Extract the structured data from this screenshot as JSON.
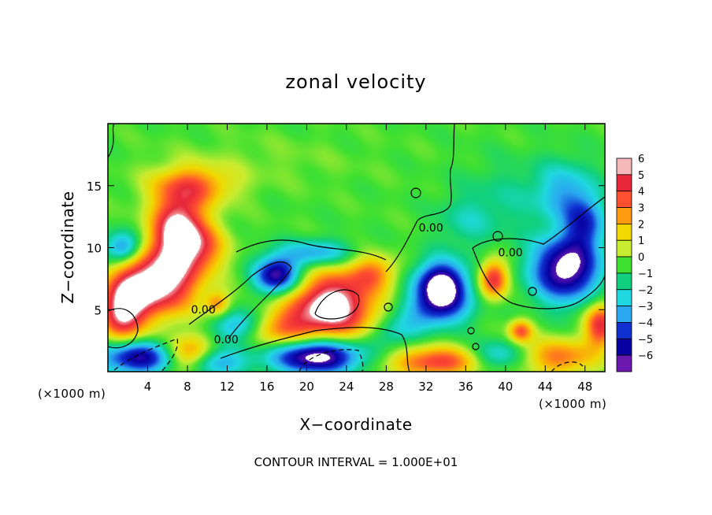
{
  "chart_data": {
    "type": "heatmap",
    "title": "zonal velocity",
    "xlabel": "X−coordinate",
    "ylabel": "Z−coordinate",
    "x_unit_left": "(×1000 m)",
    "x_unit_right": "(×1000 m)",
    "footer": "CONTOUR INTERVAL = 1.000E+01",
    "xlim": [
      0,
      50
    ],
    "ylim": [
      0,
      20
    ],
    "x_ticks": [
      4,
      8,
      12,
      16,
      20,
      24,
      28,
      32,
      36,
      40,
      44,
      48
    ],
    "y_ticks": [
      5,
      10,
      15
    ],
    "colorbar": {
      "min": -6,
      "max": 6,
      "ticks": [
        6,
        5,
        4,
        3,
        2,
        1,
        0,
        -1,
        -2,
        -3,
        -4,
        -5,
        -6
      ],
      "colors": [
        "#f4b8b8",
        "#e8283a",
        "#ff5030",
        "#ff9a10",
        "#f0d800",
        "#c8ec30",
        "#40e030",
        "#10d080",
        "#20d8e0",
        "#2aa8f0",
        "#1030d0",
        "#0800a0",
        "#6a18b0"
      ]
    },
    "contour_labels": [
      {
        "text": "0.00",
        "x": 32.5,
        "y": 11.3
      },
      {
        "text": "0.00",
        "x": 9.6,
        "y": 4.7
      },
      {
        "text": "0.00",
        "x": 11.9,
        "y": 2.3
      },
      {
        "text": "0.00",
        "x": 40.5,
        "y": 9.3
      }
    ],
    "features": [
      {
        "x": 7,
        "y": 11.5,
        "r": [
          2.6,
          2.8
        ],
        "v": 6.5
      },
      {
        "x": 5,
        "y": 7.2,
        "r": [
          3.8,
          2.6
        ],
        "v": 6.8
      },
      {
        "x": 1.5,
        "y": 5,
        "r": [
          2.2,
          2.6
        ],
        "v": 6
      },
      {
        "x": 8.5,
        "y": 15,
        "r": [
          4,
          1.6
        ],
        "v": 3.5
      },
      {
        "x": 9.5,
        "y": 10,
        "r": [
          2.5,
          2
        ],
        "v": 3
      },
      {
        "x": 22.5,
        "y": 5.3,
        "r": [
          4.2,
          2.6
        ],
        "v": 7
      },
      {
        "x": 26.5,
        "y": 8,
        "r": [
          2.5,
          1.4
        ],
        "v": 3
      },
      {
        "x": 17,
        "y": 3.5,
        "r": [
          3.5,
          1.6
        ],
        "v": 3.5
      },
      {
        "x": 11,
        "y": 5.5,
        "r": [
          1.2,
          1
        ],
        "v": 3
      },
      {
        "x": 17,
        "y": 7.8,
        "r": [
          2.2,
          1.5
        ],
        "v": -6
      },
      {
        "x": 21,
        "y": 9.6,
        "r": [
          3.5,
          1.1
        ],
        "v": -3
      },
      {
        "x": 13.5,
        "y": 3.8,
        "r": [
          2.8,
          1.3
        ],
        "v": -3.5
      },
      {
        "x": 1.5,
        "y": 10,
        "r": [
          1.8,
          1.3
        ],
        "v": -4
      },
      {
        "x": 33.5,
        "y": 7,
        "r": [
          2.6,
          1.9
        ],
        "v": -7
      },
      {
        "x": 33,
        "y": 5,
        "r": [
          3.5,
          1.5
        ],
        "v": -3
      },
      {
        "x": 46,
        "y": 8.3,
        "r": [
          3.4,
          2.6
        ],
        "v": -6.5
      },
      {
        "x": 46,
        "y": 14.5,
        "r": [
          3,
          2.5
        ],
        "v": -2.5
      },
      {
        "x": 48,
        "y": 12,
        "r": [
          2,
          2.2
        ],
        "v": -3.5
      },
      {
        "x": 38.8,
        "y": 7.5,
        "r": [
          1.4,
          1.5
        ],
        "v": 5
      },
      {
        "x": 41.5,
        "y": 3.3,
        "r": [
          1.2,
          0.9
        ],
        "v": 4
      },
      {
        "x": 49.5,
        "y": 3.8,
        "r": [
          1.5,
          1.8
        ],
        "v": 5
      },
      {
        "x": 45.5,
        "y": 1.2,
        "r": [
          3.5,
          1.5
        ],
        "v": 3.5
      },
      {
        "x": 3,
        "y": 1.2,
        "r": [
          4.5,
          1.4
        ],
        "v": -5.5
      },
      {
        "x": 10,
        "y": 0.8,
        "r": [
          3.5,
          1.2
        ],
        "v": -4
      },
      {
        "x": 21,
        "y": 1.3,
        "r": [
          4.5,
          1.4
        ],
        "v": -7
      },
      {
        "x": 33,
        "y": 0.8,
        "r": [
          4.5,
          1.2
        ],
        "v": 4.5
      },
      {
        "x": 39,
        "y": 1.3,
        "r": [
          2.5,
          1.2
        ],
        "v": -2.5
      },
      {
        "x": 29,
        "y": 3.3,
        "r": [
          2.5,
          1.2
        ],
        "v": -2
      },
      {
        "x": 40,
        "y": 14,
        "r": [
          5,
          3
        ],
        "v": -1
      },
      {
        "x": 36,
        "y": 12,
        "r": [
          3,
          2
        ],
        "v": -1.2
      },
      {
        "x": 15,
        "y": 17,
        "r": [
          10,
          2
        ],
        "v": 0.4
      },
      {
        "x": 8,
        "y": 1.2,
        "r": [
          2.5,
          1.5
        ],
        "v": 6
      }
    ]
  }
}
